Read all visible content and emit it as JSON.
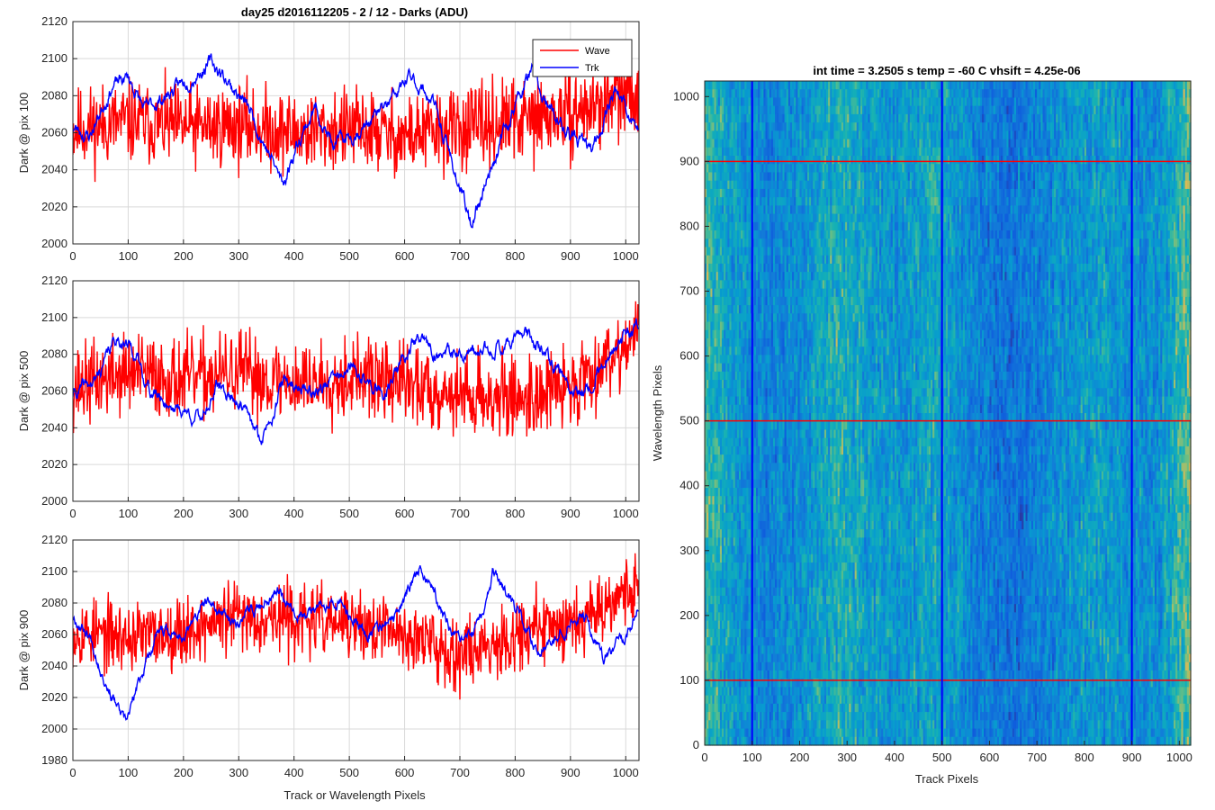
{
  "figure": {
    "colors": {
      "wave": "#ff0000",
      "trk": "#0000ff",
      "grid": "#d9d9d9",
      "axis": "#262626"
    }
  },
  "chart_data": [
    {
      "type": "line",
      "title": "day25 d2016112205 - 2 / 12 - Darks (ADU)",
      "xlabel": "",
      "ylabel": "Dark @ pix 100",
      "xlim": [
        0,
        1024
      ],
      "ylim": [
        2000,
        2120
      ],
      "xticks": [
        0,
        100,
        200,
        300,
        400,
        500,
        600,
        700,
        800,
        900,
        1000
      ],
      "yticks": [
        2000,
        2020,
        2040,
        2060,
        2080,
        2100,
        2120
      ],
      "grid": true,
      "legend": "top-right",
      "series": [
        {
          "name": "Wave",
          "color": "#ff0000",
          "noise": "high",
          "seed": 11,
          "trend": [
            [
              0,
              2062
            ],
            [
              100,
              2066
            ],
            [
              200,
              2063
            ],
            [
              300,
              2064
            ],
            [
              400,
              2060
            ],
            [
              500,
              2062
            ],
            [
              600,
              2058
            ],
            [
              700,
              2062
            ],
            [
              800,
              2066
            ],
            [
              900,
              2070
            ],
            [
              1024,
              2082
            ]
          ]
        },
        {
          "name": "Trk",
          "color": "#0000ff",
          "noise": "low",
          "seed": 23,
          "trend": [
            [
              0,
              2063
            ],
            [
              30,
              2058
            ],
            [
              70,
              2085
            ],
            [
              100,
              2090
            ],
            [
              130,
              2072
            ],
            [
              160,
              2078
            ],
            [
              200,
              2087
            ],
            [
              250,
              2098
            ],
            [
              280,
              2088
            ],
            [
              320,
              2072
            ],
            [
              380,
              2032
            ],
            [
              410,
              2058
            ],
            [
              440,
              2074
            ],
            [
              470,
              2052
            ],
            [
              520,
              2062
            ],
            [
              570,
              2075
            ],
            [
              610,
              2090
            ],
            [
              650,
              2078
            ],
            [
              700,
              2030
            ],
            [
              720,
              2010
            ],
            [
              760,
              2045
            ],
            [
              800,
              2075
            ],
            [
              830,
              2093
            ],
            [
              860,
              2072
            ],
            [
              900,
              2058
            ],
            [
              940,
              2050
            ],
            [
              980,
              2085
            ],
            [
              1024,
              2060
            ]
          ]
        }
      ]
    },
    {
      "type": "line",
      "title": "",
      "xlabel": "",
      "ylabel": "Dark @ pix 500",
      "xlim": [
        0,
        1024
      ],
      "ylim": [
        2000,
        2120
      ],
      "xticks": [
        0,
        100,
        200,
        300,
        400,
        500,
        600,
        700,
        800,
        900,
        1000
      ],
      "yticks": [
        2000,
        2020,
        2040,
        2060,
        2080,
        2100,
        2120
      ],
      "grid": true,
      "series": [
        {
          "name": "",
          "color": "#ff0000",
          "noise": "high",
          "seed": 37,
          "trend": [
            [
              0,
              2062
            ],
            [
              100,
              2070
            ],
            [
              200,
              2066
            ],
            [
              300,
              2070
            ],
            [
              400,
              2064
            ],
            [
              500,
              2068
            ],
            [
              600,
              2064
            ],
            [
              700,
              2058
            ],
            [
              800,
              2056
            ],
            [
              900,
              2062
            ],
            [
              1024,
              2092
            ]
          ]
        },
        {
          "name": "",
          "color": "#0000ff",
          "noise": "low",
          "seed": 41,
          "trend": [
            [
              0,
              2058
            ],
            [
              40,
              2065
            ],
            [
              80,
              2090
            ],
            [
              110,
              2082
            ],
            [
              140,
              2060
            ],
            [
              180,
              2052
            ],
            [
              230,
              2045
            ],
            [
              260,
              2062
            ],
            [
              300,
              2055
            ],
            [
              340,
              2032
            ],
            [
              380,
              2065
            ],
            [
              440,
              2060
            ],
            [
              500,
              2072
            ],
            [
              560,
              2058
            ],
            [
              620,
              2088
            ],
            [
              660,
              2080
            ],
            [
              720,
              2078
            ],
            [
              770,
              2085
            ],
            [
              820,
              2092
            ],
            [
              870,
              2072
            ],
            [
              920,
              2058
            ],
            [
              980,
              2085
            ],
            [
              1024,
              2095
            ]
          ]
        }
      ]
    },
    {
      "type": "line",
      "title": "",
      "xlabel": "Track or Wavelength Pixels",
      "ylabel": "Dark @ pix 900",
      "xlim": [
        0,
        1024
      ],
      "ylim": [
        1980,
        2120
      ],
      "xticks": [
        0,
        100,
        200,
        300,
        400,
        500,
        600,
        700,
        800,
        900,
        1000
      ],
      "yticks": [
        1980,
        2000,
        2020,
        2040,
        2060,
        2080,
        2100,
        2120
      ],
      "grid": true,
      "series": [
        {
          "name": "",
          "color": "#ff0000",
          "noise": "high",
          "seed": 53,
          "trend": [
            [
              0,
              2062
            ],
            [
              100,
              2058
            ],
            [
              200,
              2062
            ],
            [
              300,
              2072
            ],
            [
              400,
              2070
            ],
            [
              500,
              2066
            ],
            [
              600,
              2060
            ],
            [
              700,
              2048
            ],
            [
              800,
              2060
            ],
            [
              900,
              2068
            ],
            [
              1024,
              2092
            ]
          ]
        },
        {
          "name": "",
          "color": "#0000ff",
          "noise": "low",
          "seed": 67,
          "trend": [
            [
              0,
              2072
            ],
            [
              30,
              2060
            ],
            [
              60,
              2030
            ],
            [
              95,
              2002
            ],
            [
              120,
              2030
            ],
            [
              150,
              2060
            ],
            [
              200,
              2060
            ],
            [
              240,
              2080
            ],
            [
              290,
              2068
            ],
            [
              330,
              2076
            ],
            [
              370,
              2090
            ],
            [
              420,
              2070
            ],
            [
              470,
              2085
            ],
            [
              530,
              2060
            ],
            [
              580,
              2068
            ],
            [
              630,
              2105
            ],
            [
              660,
              2080
            ],
            [
              700,
              2052
            ],
            [
              740,
              2068
            ],
            [
              760,
              2100
            ],
            [
              800,
              2075
            ],
            [
              840,
              2050
            ],
            [
              880,
              2062
            ],
            [
              920,
              2075
            ],
            [
              960,
              2045
            ],
            [
              1000,
              2060
            ],
            [
              1024,
              2078
            ]
          ]
        }
      ]
    },
    {
      "type": "heatmap",
      "title": "int time = 3.2505 s    temp = -60 C    vhsift = 4.25e-06",
      "xlabel": "Track Pixels",
      "ylabel": "Wavelength Pixels",
      "xlim": [
        0,
        1024
      ],
      "ylim": [
        0,
        1024
      ],
      "xticks": [
        0,
        100,
        200,
        300,
        400,
        500,
        600,
        700,
        800,
        900,
        1000
      ],
      "yticks": [
        0,
        100,
        200,
        300,
        400,
        500,
        600,
        700,
        800,
        900,
        1000
      ],
      "grid": false,
      "colormap": "parula",
      "column_brightness": [
        [
          0,
          0.75
        ],
        [
          60,
          0.55
        ],
        [
          130,
          0.42
        ],
        [
          200,
          0.5
        ],
        [
          290,
          0.68
        ],
        [
          350,
          0.55
        ],
        [
          430,
          0.52
        ],
        [
          480,
          0.62
        ],
        [
          560,
          0.45
        ],
        [
          640,
          0.32
        ],
        [
          700,
          0.4
        ],
        [
          760,
          0.5
        ],
        [
          840,
          0.58
        ],
        [
          900,
          0.48
        ],
        [
          960,
          0.5
        ],
        [
          1024,
          0.82
        ]
      ],
      "marker_columns": {
        "color": "#0000ff",
        "values": [
          100,
          500,
          900
        ]
      },
      "marker_rows": {
        "color": "#ff0000",
        "values": [
          100,
          500,
          900
        ]
      }
    }
  ]
}
